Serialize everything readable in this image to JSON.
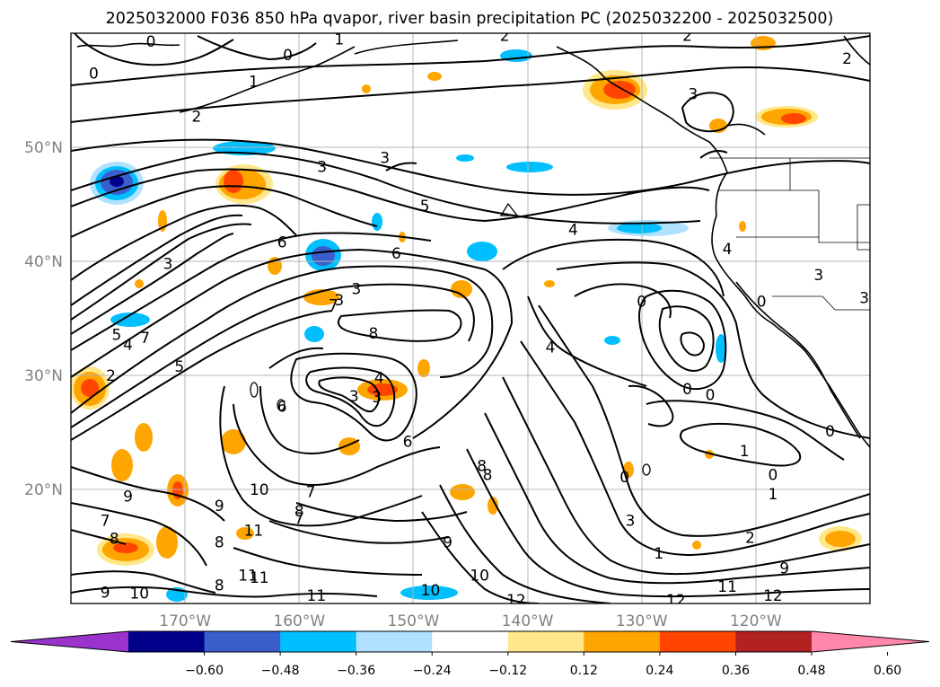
{
  "title": "2025032000 F036 850 hPa qvapor, river basin precipitation PC (2025032200 - 2025032500)",
  "chart_data": {
    "type": "heatmap",
    "map_extent": {
      "lon_min": -180,
      "lon_max": -110,
      "lat_min": 10,
      "lat_max": 60
    },
    "xaxis": {
      "ticks": [
        -170,
        -160,
        -150,
        -140,
        -130,
        -120
      ],
      "labels": [
        "170°W",
        "160°W",
        "150°W",
        "140°W",
        "130°W",
        "120°W"
      ]
    },
    "yaxis": {
      "ticks": [
        20,
        30,
        40,
        50
      ],
      "labels": [
        "20°N",
        "30°N",
        "40°N",
        "50°N"
      ]
    },
    "grid": true,
    "colorbar": {
      "levels": [
        "−0.60",
        "−0.48",
        "−0.36",
        "−0.24",
        "−0.12",
        "0.12",
        "0.24",
        "0.36",
        "0.48",
        "0.60"
      ],
      "colors": [
        "#9933cc",
        "#00008b",
        "#3a5fcd",
        "#00bfff",
        "#b0e2ff",
        "#ffffff",
        "#ffe78a",
        "#ffa500",
        "#ff4500",
        "#b22222",
        "#ff88aa"
      ],
      "extend": "both"
    },
    "contour_labels": [
      {
        "text": "0",
        "lon": -178,
        "lat": 56.5
      },
      {
        "text": "0",
        "lon": -173,
        "lat": 59.3
      },
      {
        "text": "0",
        "lon": -161,
        "lat": 58.1
      },
      {
        "text": "1",
        "lon": -156.5,
        "lat": 59.5
      },
      {
        "text": "2",
        "lon": -142,
        "lat": 59.8
      },
      {
        "text": "2",
        "lon": -126,
        "lat": 59.8
      },
      {
        "text": "2",
        "lon": -112,
        "lat": 57.8
      },
      {
        "text": "2",
        "lon": -169,
        "lat": 52.7
      },
      {
        "text": "1",
        "lon": -164,
        "lat": 55.8
      },
      {
        "text": "3",
        "lon": -158,
        "lat": 48.3
      },
      {
        "text": "3",
        "lon": -125.5,
        "lat": 54.7
      },
      {
        "text": "3",
        "lon": -152.5,
        "lat": 49.1
      },
      {
        "text": "5",
        "lon": -149,
        "lat": 44.9
      },
      {
        "text": "4",
        "lon": -136,
        "lat": 42.8
      },
      {
        "text": "6",
        "lon": -161.5,
        "lat": 41.7
      },
      {
        "text": "6",
        "lon": -151.5,
        "lat": 40.7
      },
      {
        "text": "3",
        "lon": -171.5,
        "lat": 39.8
      },
      {
        "text": "3",
        "lon": -156.5,
        "lat": 36.6
      },
      {
        "text": "3",
        "lon": -155,
        "lat": 37.6
      },
      {
        "text": "7",
        "lon": -157,
        "lat": 36.2
      },
      {
        "text": "7",
        "lon": -173.5,
        "lat": 33.3
      },
      {
        "text": "8",
        "lon": -153.5,
        "lat": 33.7
      },
      {
        "text": "5",
        "lon": -176,
        "lat": 33.6
      },
      {
        "text": "5",
        "lon": -170.5,
        "lat": 30.8
      },
      {
        "text": "4",
        "lon": -175,
        "lat": 32.7
      },
      {
        "text": "4",
        "lon": -138,
        "lat": 32.5
      },
      {
        "text": "4",
        "lon": -153,
        "lat": 29.8
      },
      {
        "text": "3",
        "lon": -155.2,
        "lat": 28.2
      },
      {
        "text": "3",
        "lon": -153.2,
        "lat": 28.1
      },
      {
        "text": "2",
        "lon": -176.5,
        "lat": 30
      },
      {
        "text": "6",
        "lon": -161.5,
        "lat": 27.3
      },
      {
        "text": "6",
        "lon": -150.5,
        "lat": 24.2
      },
      {
        "text": "0",
        "lon": -130,
        "lat": 36.5
      },
      {
        "text": "0",
        "lon": -126,
        "lat": 28.8
      },
      {
        "text": "0",
        "lon": -131.5,
        "lat": 21.1
      },
      {
        "text": "0",
        "lon": -124,
        "lat": 28.3
      },
      {
        "text": "0",
        "lon": -118.5,
        "lat": 21.3
      },
      {
        "text": "0",
        "lon": -113.5,
        "lat": 25.1
      },
      {
        "text": "1",
        "lon": -121,
        "lat": 23.4
      },
      {
        "text": "1",
        "lon": -118.5,
        "lat": 19.6
      },
      {
        "text": "1",
        "lon": -128.5,
        "lat": 14.4
      },
      {
        "text": "2",
        "lon": -120.5,
        "lat": 15.8
      },
      {
        "text": "3",
        "lon": -131,
        "lat": 17.3
      },
      {
        "text": "8",
        "lon": -144,
        "lat": 22.1
      },
      {
        "text": "8",
        "lon": -143.5,
        "lat": 21.3
      },
      {
        "text": "7",
        "lon": -159,
        "lat": 19.8
      },
      {
        "text": "7",
        "lon": -160,
        "lat": 17.5
      },
      {
        "text": "8",
        "lon": -160,
        "lat": 18.1
      },
      {
        "text": "9",
        "lon": -175,
        "lat": 19.4
      },
      {
        "text": "9",
        "lon": -167,
        "lat": 18.6
      },
      {
        "text": "8",
        "lon": -167,
        "lat": 15.4
      },
      {
        "text": "7",
        "lon": -177,
        "lat": 17.3
      },
      {
        "text": "8",
        "lon": -176.2,
        "lat": 15.7
      },
      {
        "text": "10",
        "lon": -163.5,
        "lat": 20.0
      },
      {
        "text": "11",
        "lon": -164,
        "lat": 16.4
      },
      {
        "text": "11",
        "lon": -163.5,
        "lat": 12.3
      },
      {
        "text": "9",
        "lon": -147,
        "lat": 15.4
      },
      {
        "text": "10",
        "lon": -148.5,
        "lat": 11.2
      },
      {
        "text": "10",
        "lon": -144.2,
        "lat": 12.5
      },
      {
        "text": "12",
        "lon": -141,
        "lat": 10.3
      },
      {
        "text": "12",
        "lon": -127,
        "lat": 10.3
      },
      {
        "text": "11",
        "lon": -122.5,
        "lat": 11.5
      },
      {
        "text": "12",
        "lon": -118.5,
        "lat": 10.7
      },
      {
        "text": "9",
        "lon": -117.5,
        "lat": 13.1
      },
      {
        "text": "9",
        "lon": -177,
        "lat": 11.0
      },
      {
        "text": "10",
        "lon": -174,
        "lat": 10.9
      },
      {
        "text": "11",
        "lon": -158.5,
        "lat": 10.7
      },
      {
        "text": "8",
        "lon": -167,
        "lat": 11.6
      },
      {
        "text": "11",
        "lon": -164.5,
        "lat": 12.5
      },
      {
        "text": "3",
        "lon": -114.5,
        "lat": 38.8
      },
      {
        "text": "3",
        "lon": -110.5,
        "lat": 36.8
      },
      {
        "text": "4",
        "lon": -122.5,
        "lat": 41.1
      },
      {
        "text": "0",
        "lon": -119.5,
        "lat": 36.5
      }
    ]
  }
}
